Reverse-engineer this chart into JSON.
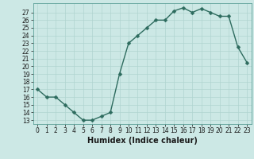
{
  "x": [
    0,
    1,
    2,
    3,
    4,
    5,
    6,
    7,
    8,
    9,
    10,
    11,
    12,
    13,
    14,
    15,
    16,
    17,
    18,
    19,
    20,
    21,
    22,
    23
  ],
  "y": [
    17,
    16,
    16,
    15,
    14,
    13,
    13,
    13.5,
    14,
    19,
    23,
    24,
    25,
    26,
    26,
    27.2,
    27.6,
    27,
    27.5,
    27,
    26.5,
    26.5,
    22.5,
    20.5
  ],
  "line_color": "#2d6b5e",
  "marker_color": "#2d6b5e",
  "bg_color": "#cce8e5",
  "grid_color": "#b0d4d0",
  "xlabel": "Humidex (Indice chaleur)",
  "xlim": [
    -0.5,
    23.5
  ],
  "ylim": [
    12.5,
    28.2
  ],
  "yticks": [
    13,
    14,
    15,
    16,
    17,
    18,
    19,
    20,
    21,
    22,
    23,
    24,
    25,
    26,
    27
  ],
  "xticks": [
    0,
    1,
    2,
    3,
    4,
    5,
    6,
    7,
    8,
    9,
    10,
    11,
    12,
    13,
    14,
    15,
    16,
    17,
    18,
    19,
    20,
    21,
    22,
    23
  ],
  "xtick_labels": [
    "0",
    "1",
    "2",
    "3",
    "4",
    "5",
    "6",
    "7",
    "8",
    "9",
    "10",
    "11",
    "12",
    "13",
    "14",
    "15",
    "16",
    "17",
    "18",
    "19",
    "20",
    "21",
    "22",
    "23"
  ],
  "ytick_labels": [
    "13",
    "14",
    "15",
    "16",
    "17",
    "18",
    "19",
    "20",
    "21",
    "22",
    "23",
    "24",
    "25",
    "26",
    "27"
  ],
  "tick_fontsize": 5.5,
  "xlabel_fontsize": 7,
  "marker_size": 2.5,
  "line_width": 1.0
}
